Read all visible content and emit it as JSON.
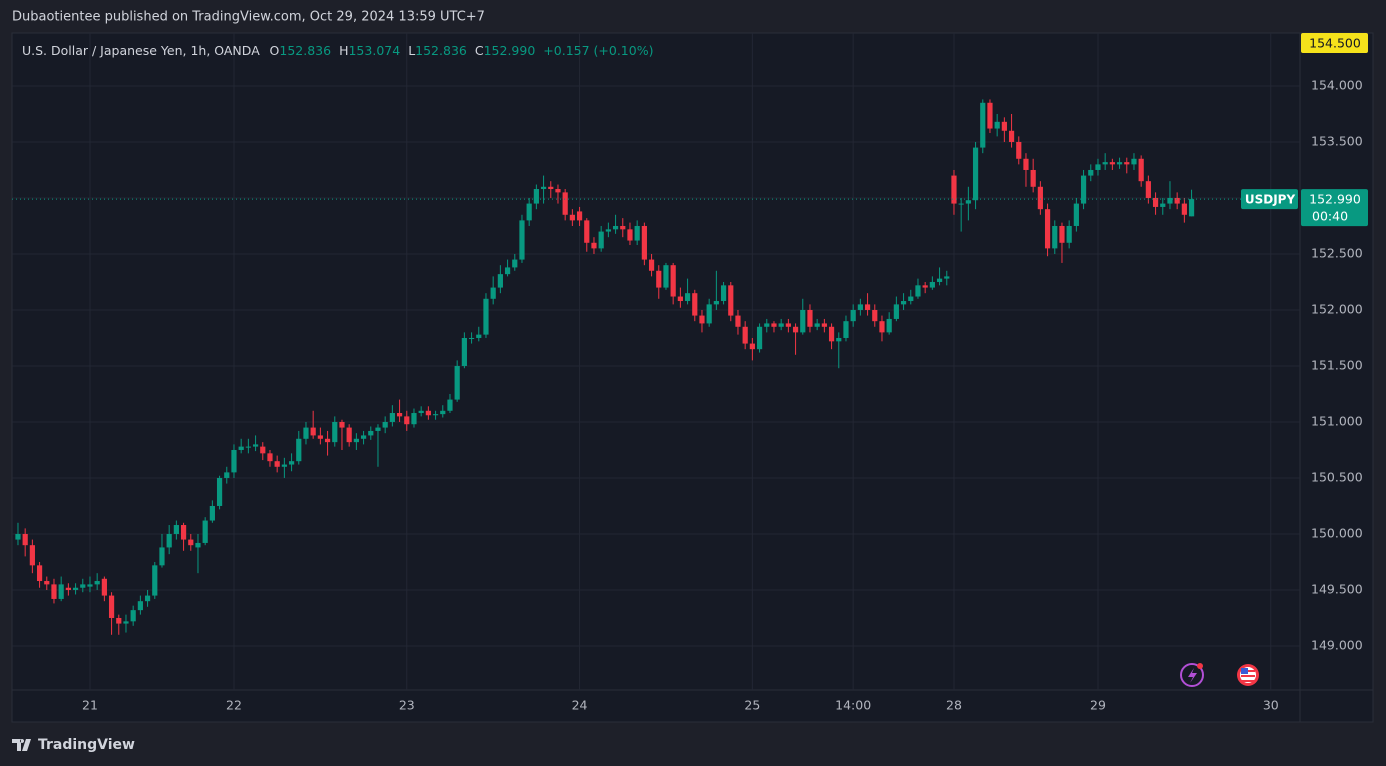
{
  "header": {
    "attribution": "Dubaotientee published on TradingView.com, Oct 29, 2024 13:59 UTC+7"
  },
  "chart_data": {
    "type": "candlestick",
    "legend": {
      "name": "U.S. Dollar / Japanese Yen, 1h, OANDA",
      "items": [
        {
          "key": "O",
          "value": "152.836"
        },
        {
          "key": "H",
          "value": "153.074"
        },
        {
          "key": "L",
          "value": "152.836"
        },
        {
          "key": "C",
          "value": "152.990"
        }
      ],
      "change": "+0.157 (+0.10%)"
    },
    "series": [
      {
        "name": "USDJPY",
        "up_color": "#089981",
        "down_color": "#f23645",
        "open": [
          149.95,
          150.0,
          149.9,
          149.72,
          149.58,
          149.55,
          149.42,
          149.52,
          149.5,
          149.52,
          149.53,
          149.55,
          149.6,
          149.45,
          149.25,
          149.2,
          149.22,
          149.32,
          149.4,
          149.45,
          149.72,
          149.88,
          150.0,
          150.08,
          149.95,
          149.88,
          149.92,
          150.12,
          150.25,
          150.5,
          150.55,
          150.75,
          150.78,
          150.78,
          150.78,
          150.72,
          150.65,
          150.6,
          150.62,
          150.65,
          150.85,
          150.95,
          150.88,
          150.85,
          150.82,
          151.0,
          150.95,
          150.82,
          150.85,
          150.88,
          150.92,
          150.95,
          151.0,
          151.08,
          151.05,
          150.98,
          151.08,
          151.1,
          151.06,
          151.07,
          151.1,
          151.2,
          151.5,
          151.75,
          151.75,
          151.78,
          152.1,
          152.2,
          152.32,
          152.38,
          152.45,
          152.8,
          152.95,
          153.08,
          153.1,
          153.08,
          153.05,
          152.85,
          152.88,
          152.8,
          152.6,
          152.55,
          152.7,
          152.72,
          152.75,
          152.72,
          152.62,
          152.75,
          152.45,
          152.35,
          152.2,
          152.4,
          152.12,
          152.08,
          152.15,
          151.95,
          151.88,
          152.05,
          152.08,
          152.22,
          151.95,
          151.85,
          151.7,
          151.65,
          151.85,
          151.88,
          151.85,
          151.88,
          151.85,
          151.8,
          152.0,
          151.85,
          151.88,
          151.85,
          151.72,
          151.75,
          151.9,
          152.0,
          152.05,
          152.0,
          151.9,
          151.8,
          151.92,
          152.05,
          152.08,
          152.12,
          152.22,
          152.2,
          152.25,
          152.28,
          153.2,
          152.95,
          152.95,
          152.98,
          153.45,
          153.85,
          153.62,
          153.68,
          153.6,
          153.5,
          153.35,
          153.25,
          153.1,
          152.9,
          152.55,
          152.75,
          152.6,
          152.75,
          152.95,
          153.2,
          153.25,
          153.3,
          153.32,
          153.3,
          153.32,
          153.3,
          153.35,
          153.15,
          153.0,
          152.92,
          152.95,
          153.0,
          152.95,
          152.836
        ],
        "high": [
          150.1,
          150.05,
          149.95,
          149.75,
          149.62,
          149.6,
          149.62,
          149.56,
          149.56,
          149.6,
          149.62,
          149.65,
          149.62,
          149.48,
          149.28,
          149.28,
          149.36,
          149.45,
          149.5,
          149.75,
          150.0,
          150.08,
          150.12,
          150.1,
          150.0,
          150.0,
          150.15,
          150.3,
          150.52,
          150.6,
          150.8,
          150.85,
          150.85,
          150.88,
          150.82,
          150.75,
          150.7,
          150.68,
          150.72,
          150.92,
          151.0,
          151.1,
          150.95,
          150.92,
          151.05,
          151.02,
          150.98,
          150.9,
          150.92,
          150.96,
          150.98,
          151.05,
          151.15,
          151.2,
          151.1,
          151.12,
          151.14,
          151.14,
          151.1,
          151.15,
          151.25,
          151.55,
          151.8,
          151.8,
          151.85,
          152.15,
          152.3,
          152.4,
          152.45,
          152.5,
          152.85,
          153.0,
          153.12,
          153.2,
          153.15,
          153.12,
          153.08,
          152.9,
          152.92,
          152.82,
          152.65,
          152.75,
          152.78,
          152.85,
          152.82,
          152.78,
          152.8,
          152.78,
          152.5,
          152.4,
          152.42,
          152.42,
          152.2,
          152.28,
          152.18,
          152.0,
          152.1,
          152.35,
          152.25,
          152.25,
          152.0,
          151.9,
          151.75,
          151.88,
          151.92,
          151.9,
          151.92,
          151.92,
          151.88,
          152.1,
          152.05,
          151.92,
          151.92,
          151.88,
          151.8,
          151.95,
          152.05,
          152.1,
          152.15,
          152.05,
          151.95,
          151.98,
          152.12,
          152.15,
          152.18,
          152.28,
          152.25,
          152.3,
          152.38,
          152.35,
          153.25,
          153.0,
          153.1,
          153.5,
          153.88,
          153.88,
          153.75,
          153.72,
          153.75,
          153.55,
          153.4,
          153.35,
          153.15,
          152.95,
          152.8,
          152.78,
          152.8,
          153.0,
          153.25,
          153.3,
          153.35,
          153.4,
          153.35,
          153.36,
          153.36,
          153.4,
          153.38,
          153.2,
          153.05,
          153.0,
          153.15,
          153.05,
          153.0,
          153.074
        ],
        "low": [
          149.9,
          149.8,
          149.65,
          149.52,
          149.5,
          149.38,
          149.4,
          149.45,
          149.46,
          149.48,
          149.48,
          149.5,
          149.4,
          149.1,
          149.1,
          149.12,
          149.18,
          149.28,
          149.35,
          149.42,
          149.7,
          149.82,
          149.95,
          149.85,
          149.85,
          149.65,
          149.9,
          150.1,
          150.22,
          150.45,
          150.5,
          150.72,
          150.72,
          150.74,
          150.66,
          150.6,
          150.55,
          150.5,
          150.56,
          150.62,
          150.8,
          150.85,
          150.8,
          150.7,
          150.78,
          150.75,
          150.78,
          150.75,
          150.8,
          150.84,
          150.6,
          150.9,
          150.96,
          151.0,
          150.92,
          150.95,
          151.05,
          151.02,
          151.02,
          151.04,
          151.08,
          151.18,
          151.48,
          151.7,
          151.72,
          151.75,
          152.05,
          152.15,
          152.3,
          152.35,
          152.42,
          152.75,
          152.9,
          152.95,
          153.0,
          152.95,
          152.8,
          152.75,
          152.75,
          152.52,
          152.5,
          152.52,
          152.65,
          152.68,
          152.65,
          152.58,
          152.58,
          152.4,
          152.3,
          152.1,
          152.18,
          152.05,
          152.02,
          152.05,
          151.9,
          151.8,
          151.85,
          152.0,
          152.05,
          151.9,
          151.78,
          151.65,
          151.55,
          151.62,
          151.8,
          151.8,
          151.82,
          151.8,
          151.6,
          151.78,
          151.8,
          151.82,
          151.8,
          151.65,
          151.48,
          151.72,
          151.85,
          151.95,
          151.95,
          151.85,
          151.72,
          151.78,
          151.9,
          152.0,
          152.05,
          152.1,
          152.15,
          152.18,
          152.22,
          152.22,
          152.85,
          152.7,
          152.8,
          152.9,
          153.4,
          153.58,
          153.55,
          153.5,
          153.45,
          153.3,
          153.1,
          153.05,
          152.85,
          152.48,
          152.5,
          152.42,
          152.55,
          152.7,
          152.9,
          153.15,
          153.2,
          153.25,
          153.25,
          153.26,
          153.22,
          153.25,
          153.1,
          152.95,
          152.85,
          152.85,
          152.9,
          152.9,
          152.78,
          152.836
        ],
        "close": [
          150.0,
          149.9,
          149.72,
          149.58,
          149.55,
          149.42,
          149.55,
          149.5,
          149.52,
          149.55,
          149.55,
          149.58,
          149.45,
          149.25,
          149.2,
          149.22,
          149.32,
          149.4,
          149.45,
          149.72,
          149.88,
          150.0,
          150.08,
          149.95,
          149.9,
          149.92,
          150.12,
          150.25,
          150.5,
          150.55,
          150.75,
          150.78,
          150.78,
          150.8,
          150.72,
          150.65,
          150.6,
          150.62,
          150.65,
          150.85,
          150.95,
          150.88,
          150.85,
          150.82,
          151.0,
          150.95,
          150.82,
          150.85,
          150.88,
          150.92,
          150.95,
          151.0,
          151.08,
          151.05,
          150.98,
          151.08,
          151.1,
          151.06,
          151.07,
          151.1,
          151.2,
          151.5,
          151.75,
          151.75,
          151.78,
          152.1,
          152.2,
          152.32,
          152.38,
          152.45,
          152.8,
          152.95,
          153.08,
          153.1,
          153.08,
          153.05,
          152.85,
          152.8,
          152.8,
          152.6,
          152.55,
          152.7,
          152.72,
          152.75,
          152.72,
          152.62,
          152.75,
          152.45,
          152.35,
          152.2,
          152.4,
          152.12,
          152.08,
          152.15,
          151.95,
          151.88,
          152.05,
          152.08,
          152.22,
          151.95,
          151.85,
          151.7,
          151.65,
          151.85,
          151.88,
          151.85,
          151.88,
          151.85,
          151.8,
          152.0,
          151.85,
          151.88,
          151.85,
          151.72,
          151.75,
          151.9,
          152.0,
          152.05,
          152.0,
          151.9,
          151.8,
          151.92,
          152.05,
          152.08,
          152.12,
          152.22,
          152.2,
          152.25,
          152.28,
          152.3,
          152.95,
          152.95,
          152.98,
          153.45,
          153.85,
          153.62,
          153.68,
          153.6,
          153.5,
          153.35,
          153.25,
          153.1,
          152.9,
          152.55,
          152.75,
          152.6,
          152.75,
          152.95,
          153.2,
          153.25,
          153.3,
          153.32,
          153.3,
          153.32,
          153.3,
          153.35,
          153.15,
          153.0,
          152.92,
          152.95,
          153.0,
          152.95,
          152.85,
          152.99
        ]
      }
    ],
    "xlim": [
      -0.83,
      178.06
    ],
    "xticks": [
      {
        "value": 10,
        "label": "21"
      },
      {
        "value": 30,
        "label": "22"
      },
      {
        "value": 54,
        "label": "23"
      },
      {
        "value": 78,
        "label": "24"
      },
      {
        "value": 102,
        "label": "25"
      },
      {
        "value": 116,
        "label": "14:00"
      },
      {
        "value": 130,
        "label": "28"
      },
      {
        "value": 150,
        "label": "29"
      },
      {
        "value": 174,
        "label": "30"
      }
    ],
    "ylim": [
      148.607,
      154.473
    ],
    "yticks": [
      {
        "value": 149,
        "label": "149.000"
      },
      {
        "value": 149.5,
        "label": "149.500"
      },
      {
        "value": 150,
        "label": "150.000"
      },
      {
        "value": 150.5,
        "label": "150.500"
      },
      {
        "value": 151,
        "label": "151.000"
      },
      {
        "value": 151.5,
        "label": "151.500"
      },
      {
        "value": 152,
        "label": "152.000"
      },
      {
        "value": 152.5,
        "label": "152.500"
      },
      {
        "value": 153,
        "label": "153.000"
      },
      {
        "value": 153.5,
        "label": "153.500"
      },
      {
        "value": 154,
        "label": "154.000"
      }
    ],
    "grid": true,
    "last_price": {
      "symbol": "USDJPY",
      "price": "152.990",
      "countdown": "00:40"
    },
    "alert": {
      "value": 154.5,
      "label": "154.500"
    }
  },
  "footer": {
    "brand": "TradingView"
  }
}
